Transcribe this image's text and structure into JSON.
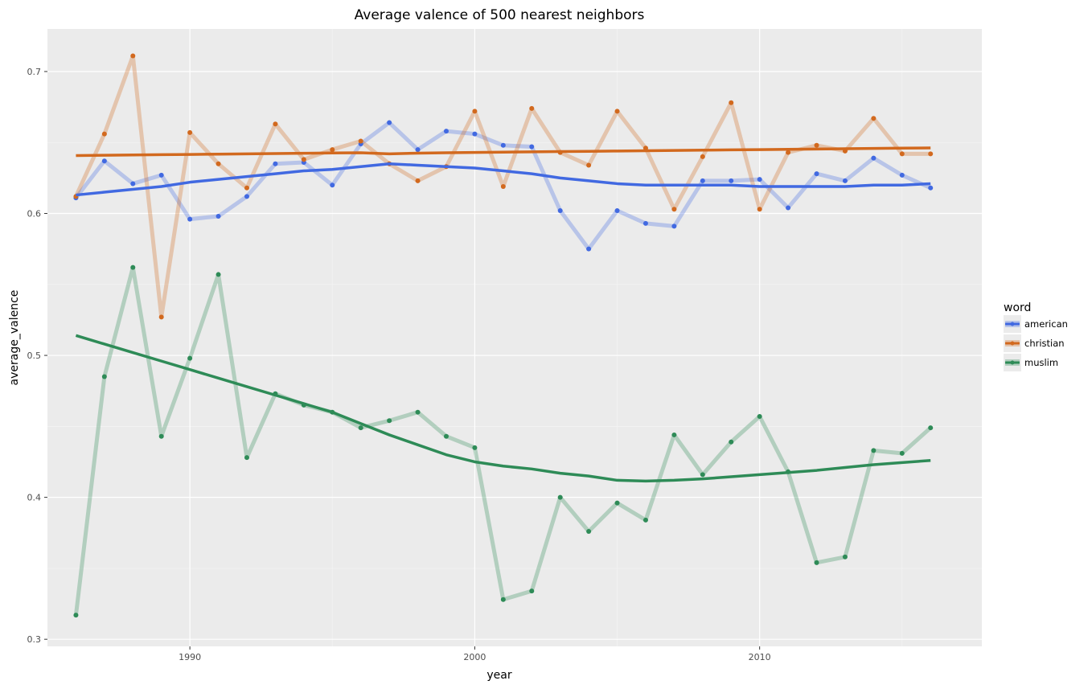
{
  "chart_data": {
    "type": "line",
    "title": "Average valence of 500 nearest neighbors",
    "xlabel": "year",
    "ylabel": "average_valence",
    "xlim": [
      1985.0,
      2017.8
    ],
    "ylim": [
      0.295,
      0.73
    ],
    "x_ticks": [
      1990,
      2000,
      2010
    ],
    "y_ticks": [
      0.3,
      0.4,
      0.5,
      0.6,
      0.7
    ],
    "x_tick_labels": [
      "1990",
      "2000",
      "2010"
    ],
    "y_tick_labels": [
      "0.3",
      "0.4",
      "0.5",
      "0.6",
      "0.7"
    ],
    "grid": true,
    "legend": {
      "title": "word",
      "placement": "right"
    },
    "x": [
      1986,
      1987,
      1988,
      1989,
      1990,
      1991,
      1992,
      1993,
      1994,
      1995,
      1996,
      1997,
      1998,
      1999,
      2000,
      2001,
      2002,
      2003,
      2004,
      2005,
      2006,
      2007,
      2008,
      2009,
      2010,
      2011,
      2012,
      2013,
      2014,
      2015,
      2016
    ],
    "series": [
      {
        "name": "american",
        "color": "#4169e1",
        "values": [
          0.611,
          0.637,
          0.621,
          0.627,
          0.596,
          0.598,
          0.612,
          0.635,
          0.636,
          0.62,
          0.649,
          0.664,
          0.645,
          0.658,
          0.656,
          0.648,
          0.647,
          0.602,
          0.575,
          0.602,
          0.593,
          0.591,
          0.623,
          0.623,
          0.624,
          0.604,
          0.628,
          0.623,
          0.639,
          0.627,
          0.618
        ],
        "smooth": [
          0.613,
          0.615,
          0.617,
          0.619,
          0.622,
          0.624,
          0.626,
          0.628,
          0.63,
          0.631,
          0.633,
          0.635,
          0.634,
          0.633,
          0.632,
          0.63,
          0.628,
          0.625,
          0.623,
          0.621,
          0.62,
          0.62,
          0.62,
          0.62,
          0.619,
          0.619,
          0.619,
          0.619,
          0.62,
          0.62,
          0.621
        ]
      },
      {
        "name": "christian",
        "color": "#d2691e",
        "values": [
          0.612,
          0.656,
          0.711,
          0.527,
          0.657,
          0.635,
          0.618,
          0.663,
          0.638,
          0.645,
          0.651,
          0.635,
          0.623,
          0.633,
          0.672,
          0.619,
          0.674,
          0.643,
          0.634,
          0.672,
          0.646,
          0.603,
          0.64,
          0.678,
          0.603,
          0.643,
          0.648,
          0.644,
          0.667,
          0.642,
          0.642
        ],
        "smooth": [
          0.6408,
          0.641,
          0.6412,
          0.6414,
          0.6416,
          0.6418,
          0.642,
          0.6422,
          0.6424,
          0.6426,
          0.6428,
          0.642,
          0.6425,
          0.6428,
          0.643,
          0.6432,
          0.6434,
          0.6436,
          0.6438,
          0.644,
          0.6442,
          0.6444,
          0.6446,
          0.6448,
          0.645,
          0.6452,
          0.6454,
          0.6456,
          0.6458,
          0.646,
          0.6462
        ]
      },
      {
        "name": "muslim",
        "color": "#2e8b57",
        "values": [
          0.317,
          0.485,
          0.562,
          0.443,
          0.498,
          0.557,
          0.428,
          0.473,
          0.465,
          0.46,
          0.449,
          0.454,
          0.46,
          0.443,
          0.435,
          0.328,
          0.334,
          0.4,
          0.376,
          0.396,
          0.384,
          0.444,
          0.416,
          0.439,
          0.457,
          0.418,
          0.354,
          0.358,
          0.433,
          0.431,
          0.449
        ],
        "smooth": [
          0.514,
          0.508,
          0.502,
          0.496,
          0.49,
          0.484,
          0.478,
          0.472,
          0.466,
          0.46,
          0.452,
          0.444,
          0.437,
          0.43,
          0.425,
          0.422,
          0.42,
          0.417,
          0.415,
          0.412,
          0.4115,
          0.412,
          0.413,
          0.4145,
          0.416,
          0.4175,
          0.419,
          0.421,
          0.423,
          0.4245,
          0.426
        ]
      }
    ]
  }
}
